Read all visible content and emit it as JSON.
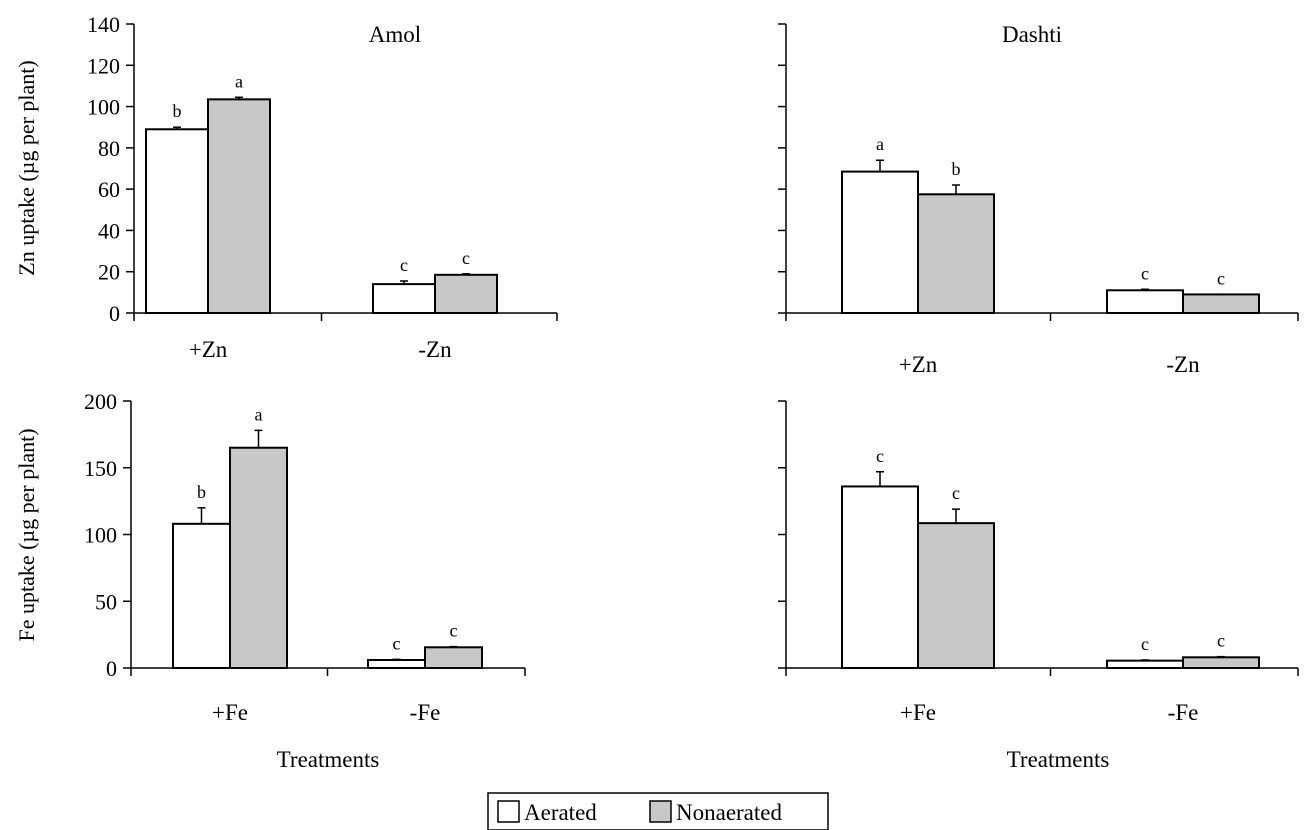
{
  "colors": {
    "aerated": "#ffffff",
    "nonaerated": "#c8c8c8",
    "axis": "#000000"
  },
  "legend": {
    "placement": "bottom-center",
    "items": [
      {
        "label": "Aerated",
        "color": "#ffffff"
      },
      {
        "label": "Nonaerated",
        "color": "#c8c8c8"
      }
    ]
  },
  "chart_data": [
    {
      "type": "bar",
      "title": "Amol",
      "ylabel": "Zn uptake (µg per plant)",
      "xlabel": "",
      "ylim": [
        0,
        140
      ],
      "yticks": [
        0,
        20,
        40,
        60,
        80,
        100,
        120,
        140
      ],
      "show_tick_labels": true,
      "categories": [
        "+Zn",
        "-Zn"
      ],
      "series": [
        {
          "name": "Aerated",
          "values": [
            89,
            14
          ],
          "errors": [
            1,
            1.5
          ],
          "letters": [
            "b",
            "c"
          ]
        },
        {
          "name": "Nonaerated",
          "values": [
            103.5,
            18.5
          ],
          "errors": [
            1,
            0.5
          ],
          "letters": [
            "a",
            "c"
          ]
        }
      ]
    },
    {
      "type": "bar",
      "title": "Dashti",
      "ylabel": "",
      "xlabel": "",
      "ylim": [
        0,
        140
      ],
      "yticks": [
        0,
        20,
        40,
        60,
        80,
        100,
        120,
        140
      ],
      "show_tick_labels": false,
      "categories": [
        "+Zn",
        "-Zn"
      ],
      "series": [
        {
          "name": "Aerated",
          "values": [
            68.5,
            11
          ],
          "errors": [
            5.5,
            0.5
          ],
          "letters": [
            "a",
            "c"
          ]
        },
        {
          "name": "Nonaerated",
          "values": [
            57.5,
            9
          ],
          "errors": [
            4.5,
            0
          ],
          "letters": [
            "b",
            "c"
          ]
        }
      ]
    },
    {
      "type": "bar",
      "title": "",
      "ylabel": "Fe uptake (µg per plant)",
      "xlabel": "Treatments",
      "ylim": [
        0,
        200
      ],
      "yticks": [
        0,
        50,
        100,
        150,
        200
      ],
      "show_tick_labels": true,
      "categories": [
        "+Fe",
        "-Fe"
      ],
      "series": [
        {
          "name": "Aerated",
          "values": [
            108,
            6
          ],
          "errors": [
            12,
            0.5
          ],
          "letters": [
            "b",
            "c"
          ]
        },
        {
          "name": "Nonaerated",
          "values": [
            165,
            15.5
          ],
          "errors": [
            13,
            0.5
          ],
          "letters": [
            "a",
            "c"
          ]
        }
      ]
    },
    {
      "type": "bar",
      "title": "",
      "ylabel": "",
      "xlabel": "Treatments",
      "ylim": [
        0,
        200
      ],
      "yticks": [
        0,
        50,
        100,
        150,
        200
      ],
      "show_tick_labels": false,
      "categories": [
        "+Fe",
        "-Fe"
      ],
      "series": [
        {
          "name": "Aerated",
          "values": [
            136,
            5.5
          ],
          "errors": [
            11,
            0.5
          ],
          "letters": [
            "c",
            "c"
          ]
        },
        {
          "name": "Nonaerated",
          "values": [
            108.5,
            8
          ],
          "errors": [
            10.5,
            0.5
          ],
          "letters": [
            "c",
            "c"
          ]
        }
      ]
    }
  ]
}
